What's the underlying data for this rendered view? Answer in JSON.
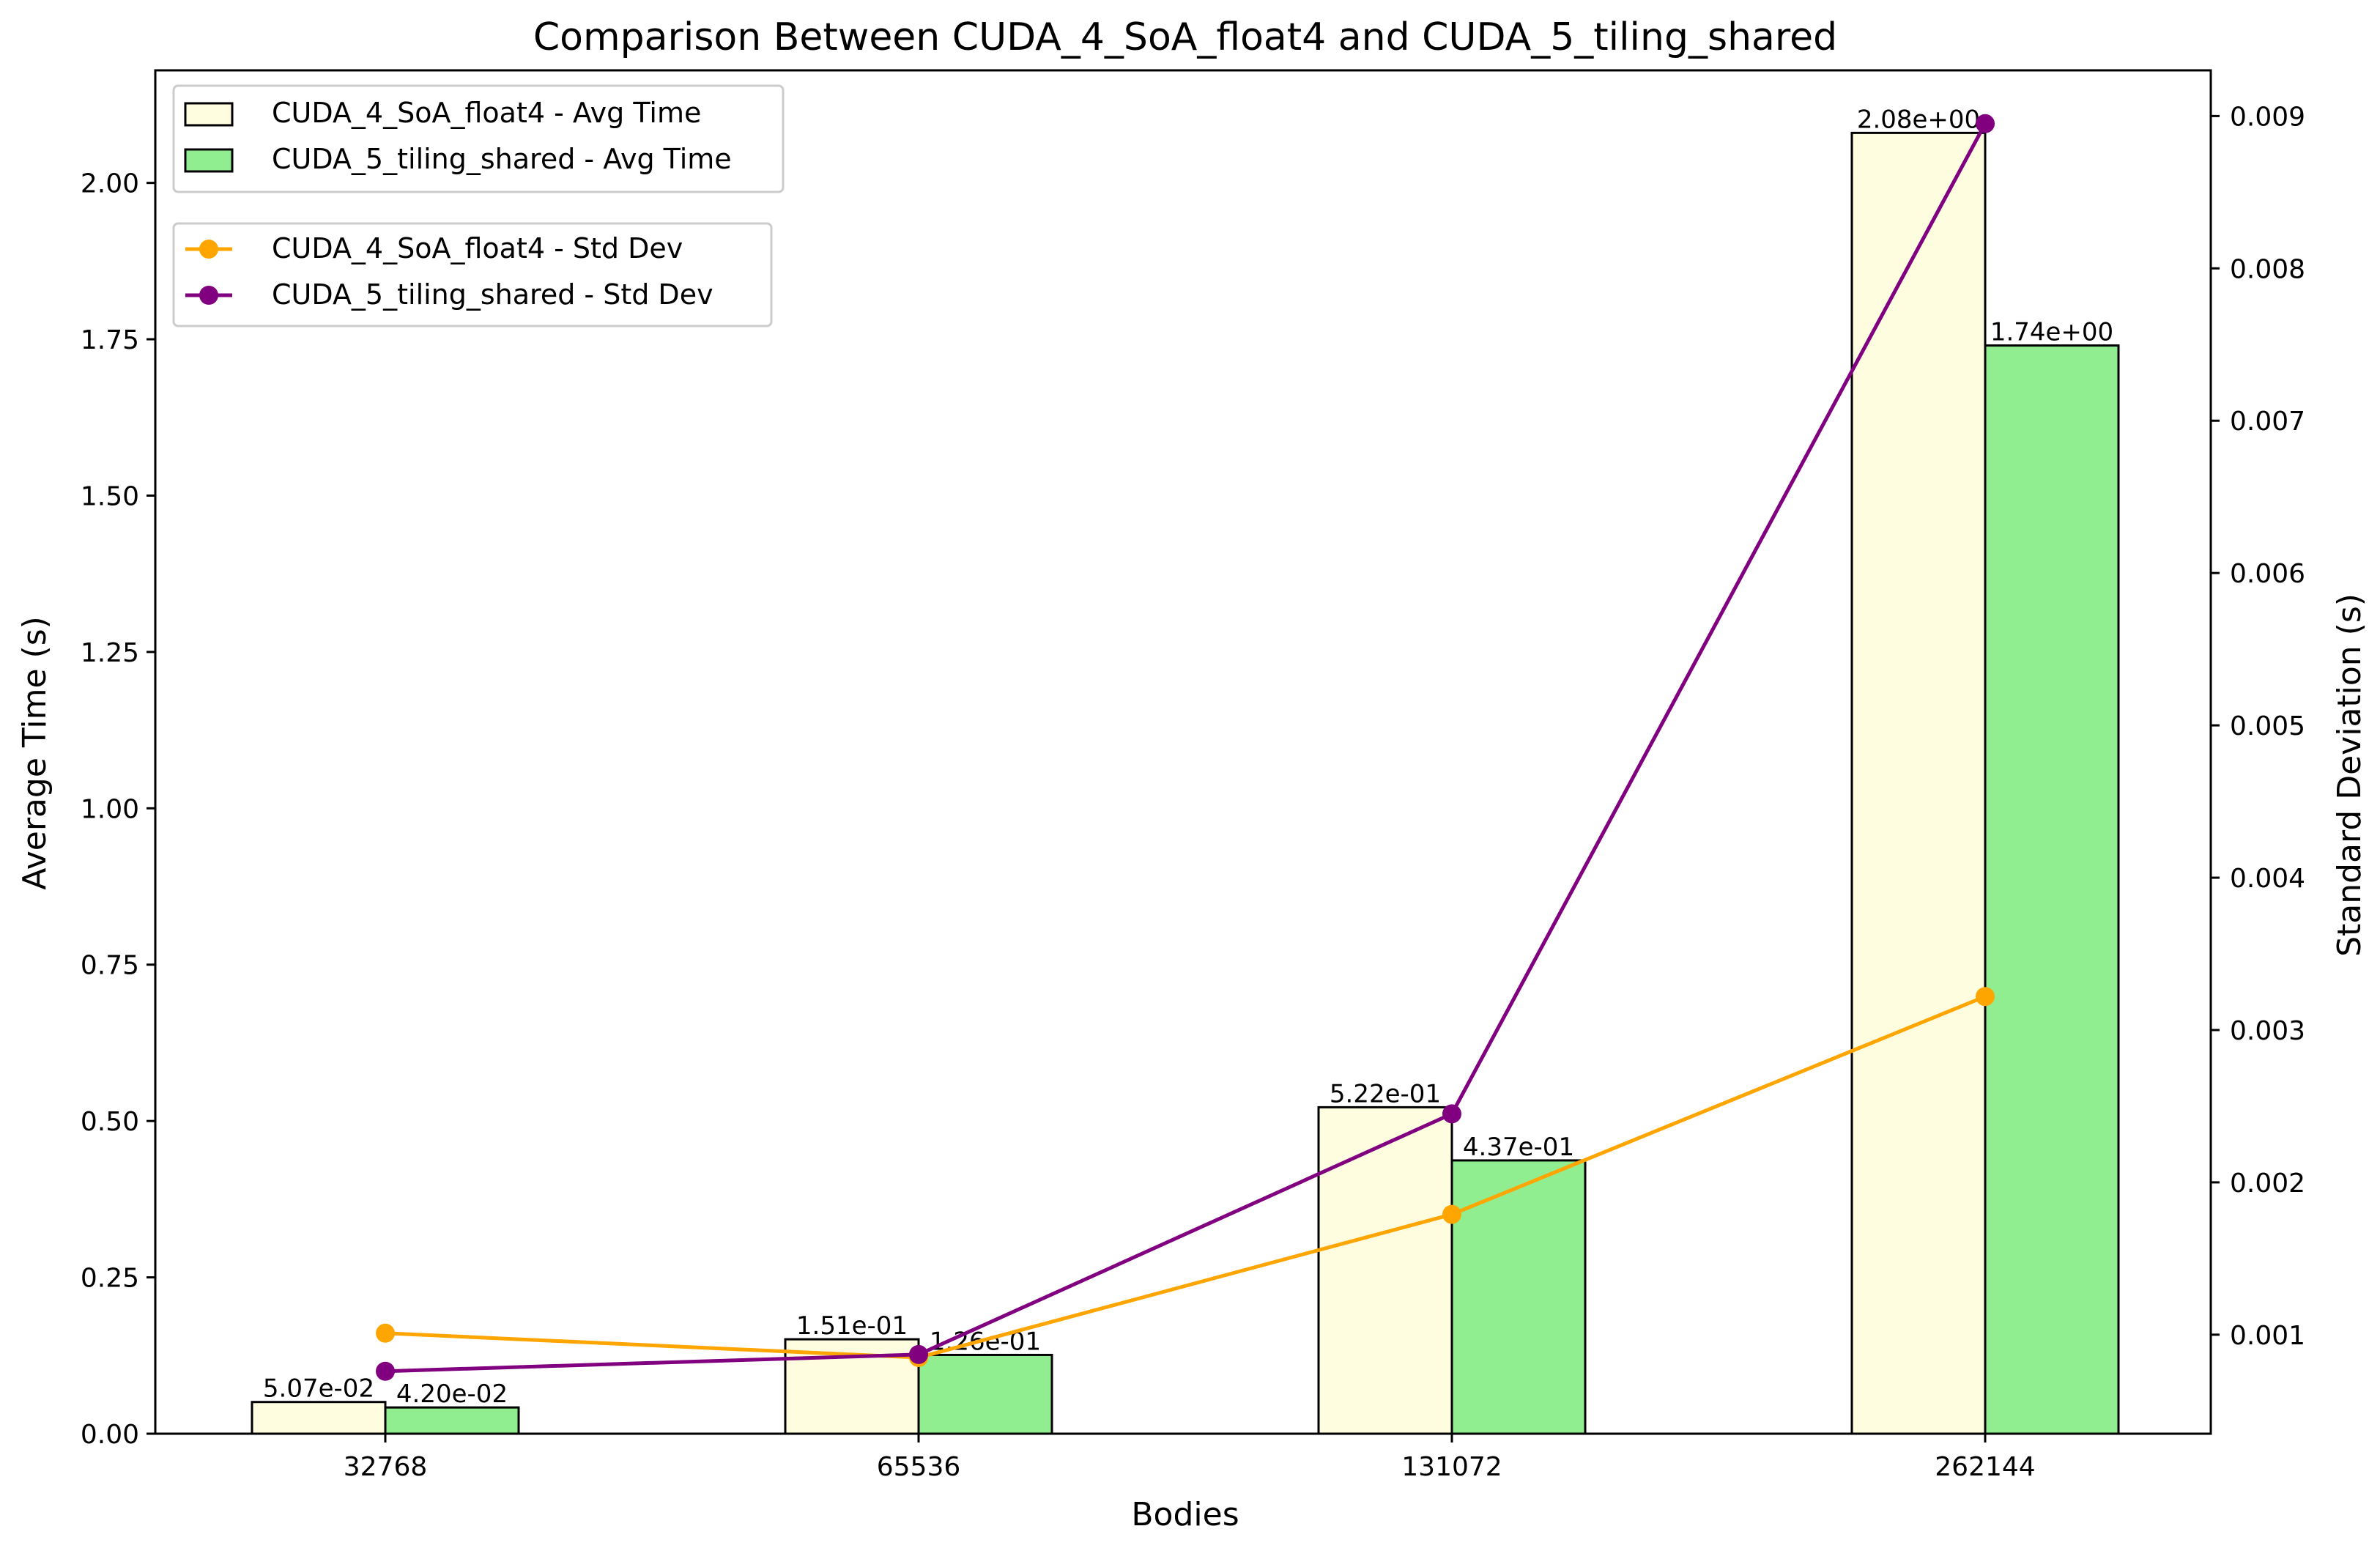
{
  "chart_data": {
    "type": "bar",
    "title": "Comparison Between CUDA_4_SoA_float4 and CUDA_5_tiling_shared",
    "xlabel": "Bodies",
    "ylabel": "Average Time (s)",
    "y2label": "Standard Deviation (s)",
    "categories": [
      "32768",
      "65536",
      "131072",
      "262144"
    ],
    "ylim": [
      0,
      2.18
    ],
    "y2lim": [
      0.00035,
      0.0093
    ],
    "yticks": [
      "0.00",
      "0.25",
      "0.50",
      "0.75",
      "1.00",
      "1.25",
      "1.50",
      "1.75",
      "2.00"
    ],
    "y2ticks": [
      "0.001",
      "0.002",
      "0.003",
      "0.004",
      "0.005",
      "0.006",
      "0.007",
      "0.008",
      "0.009"
    ],
    "grid": false,
    "legend_placement": "top-left",
    "bar_series": [
      {
        "name": "CUDA_4_SoA_float4 - Avg Time",
        "color": "#fffde0",
        "values": [
          0.0507,
          0.151,
          0.522,
          2.08
        ],
        "labels": [
          "5.07e-02",
          "1.51e-01",
          "5.22e-01",
          "2.08e+00"
        ]
      },
      {
        "name": "CUDA_5_tiling_shared - Avg Time",
        "color": "#90ee90",
        "values": [
          0.042,
          0.126,
          0.437,
          1.74
        ],
        "labels": [
          "4.20e-02",
          "1.26e-01",
          "4.37e-01",
          "1.74e+00"
        ]
      }
    ],
    "line_series": [
      {
        "name": "CUDA_4_SoA_float4 - Std Dev",
        "color": "#ffa500",
        "values": [
          0.00101,
          0.00085,
          0.00179,
          0.00322
        ]
      },
      {
        "name": "CUDA_5_tiling_shared - Std Dev",
        "color": "#800080",
        "values": [
          0.00076,
          0.00087,
          0.00245,
          0.00895
        ]
      }
    ]
  }
}
